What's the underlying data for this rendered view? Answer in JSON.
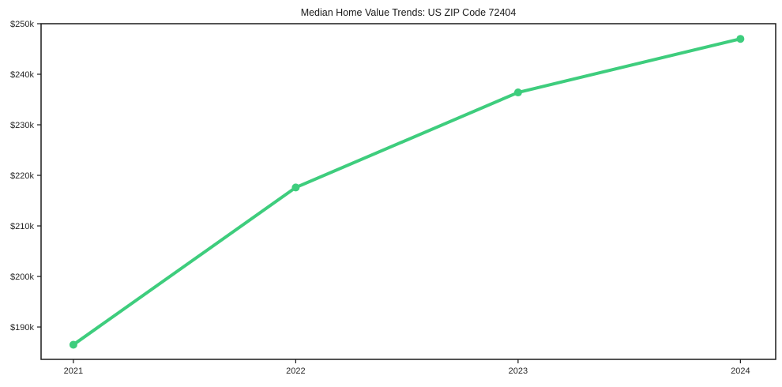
{
  "page": {
    "background_color": "#ffffff"
  },
  "chart_data": {
    "type": "line",
    "title": "Median Home Value Trends: US ZIP Code 72404",
    "categories": [
      "2021",
      "2022",
      "2023",
      "2024"
    ],
    "series": [
      {
        "name": "Median Home Value",
        "values": [
          186500,
          217600,
          236400,
          247000
        ],
        "color": "#3ecd7d",
        "marker": "circle",
        "line_width": 4,
        "marker_radius": 5
      }
    ],
    "xlabel": "",
    "ylabel": "",
    "ylim": [
      183600,
      250000
    ],
    "yticks": [
      {
        "value": 190000,
        "label": "$190k"
      },
      {
        "value": 200000,
        "label": "$200k"
      },
      {
        "value": 210000,
        "label": "$210k"
      },
      {
        "value": 220000,
        "label": "$220k"
      },
      {
        "value": 230000,
        "label": "$230k"
      },
      {
        "value": 240000,
        "label": "$240k"
      },
      {
        "value": 250000,
        "label": "$250k"
      }
    ],
    "grid": false,
    "legend": false,
    "axis_color": "#1a1a1a",
    "tick_label_color": "#262626"
  }
}
